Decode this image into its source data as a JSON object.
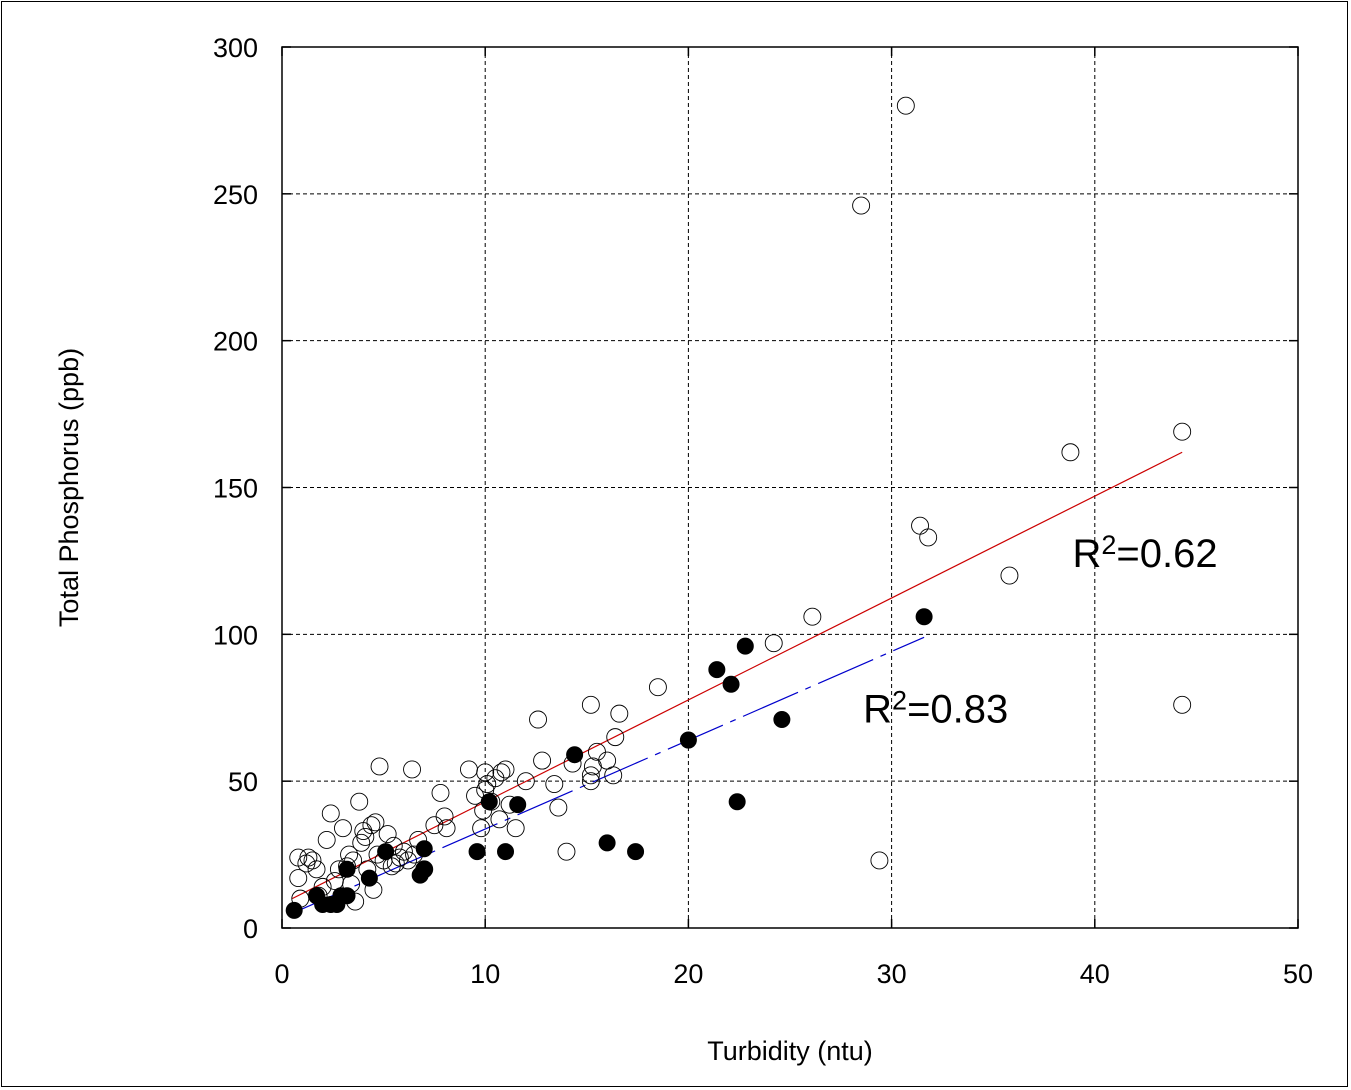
{
  "chart_data": {
    "type": "scatter",
    "title": "",
    "xlabel": "Turbidity (ntu)",
    "ylabel": "Total Phosphorus (ppb)",
    "xlim": [
      0,
      50
    ],
    "ylim": [
      0,
      300
    ],
    "x_ticks": [
      0,
      10,
      20,
      30,
      40,
      50
    ],
    "y_ticks": [
      0,
      50,
      100,
      150,
      200,
      250,
      300
    ],
    "grid": true,
    "series": [
      {
        "marker": "open-circle",
        "color": "#000000",
        "points": [
          [
            0.8,
            24
          ],
          [
            0.8,
            17
          ],
          [
            0.9,
            10
          ],
          [
            1.2,
            22
          ],
          [
            1.3,
            24
          ],
          [
            1.5,
            23
          ],
          [
            1.7,
            20
          ],
          [
            1.8,
            11
          ],
          [
            2.0,
            14
          ],
          [
            2.2,
            30
          ],
          [
            2.4,
            39
          ],
          [
            2.6,
            16
          ],
          [
            2.8,
            20
          ],
          [
            3.0,
            34
          ],
          [
            3.2,
            21
          ],
          [
            3.3,
            25
          ],
          [
            3.4,
            15
          ],
          [
            3.5,
            23
          ],
          [
            3.6,
            9
          ],
          [
            3.8,
            43
          ],
          [
            3.9,
            29
          ],
          [
            4.0,
            33
          ],
          [
            4.1,
            31
          ],
          [
            4.2,
            20
          ],
          [
            4.4,
            35
          ],
          [
            4.5,
            13
          ],
          [
            4.6,
            36
          ],
          [
            4.7,
            25
          ],
          [
            4.8,
            55
          ],
          [
            5.0,
            23
          ],
          [
            5.2,
            32
          ],
          [
            5.4,
            21
          ],
          [
            5.5,
            28
          ],
          [
            5.6,
            22
          ],
          [
            5.8,
            24
          ],
          [
            6.0,
            26
          ],
          [
            6.2,
            23
          ],
          [
            6.4,
            54
          ],
          [
            6.5,
            25
          ],
          [
            6.7,
            30
          ],
          [
            7.0,
            20
          ],
          [
            7.5,
            35
          ],
          [
            7.8,
            46
          ],
          [
            8.0,
            38
          ],
          [
            8.1,
            34
          ],
          [
            9.2,
            54
          ],
          [
            9.5,
            45
          ],
          [
            9.8,
            34
          ],
          [
            9.9,
            40
          ],
          [
            10.0,
            53
          ],
          [
            10.0,
            47
          ],
          [
            10.1,
            49
          ],
          [
            10.3,
            43
          ],
          [
            10.5,
            51
          ],
          [
            10.7,
            37
          ],
          [
            10.8,
            53
          ],
          [
            11.0,
            54
          ],
          [
            11.2,
            42
          ],
          [
            11.5,
            34
          ],
          [
            12.0,
            50
          ],
          [
            12.6,
            71
          ],
          [
            12.8,
            57
          ],
          [
            13.4,
            49
          ],
          [
            13.6,
            41
          ],
          [
            14.0,
            26
          ],
          [
            14.3,
            56
          ],
          [
            15.2,
            50
          ],
          [
            15.2,
            52
          ],
          [
            15.2,
            76
          ],
          [
            15.3,
            55
          ],
          [
            15.5,
            60
          ],
          [
            16.0,
            57
          ],
          [
            16.3,
            52
          ],
          [
            16.4,
            65
          ],
          [
            16.6,
            73
          ],
          [
            18.5,
            82
          ],
          [
            24.2,
            97
          ],
          [
            26.1,
            106
          ],
          [
            28.5,
            246
          ],
          [
            29.4,
            23
          ],
          [
            30.7,
            280
          ],
          [
            31.4,
            137
          ],
          [
            31.8,
            133
          ],
          [
            35.8,
            120
          ],
          [
            38.8,
            162
          ],
          [
            44.3,
            169
          ],
          [
            44.3,
            76
          ]
        ]
      },
      {
        "marker": "filled-circle",
        "color": "#000000",
        "points": [
          [
            0.6,
            6
          ],
          [
            1.7,
            11
          ],
          [
            2.0,
            8
          ],
          [
            2.4,
            8
          ],
          [
            2.7,
            8
          ],
          [
            2.9,
            11
          ],
          [
            3.2,
            11
          ],
          [
            3.2,
            20
          ],
          [
            4.3,
            17
          ],
          [
            5.1,
            26
          ],
          [
            6.8,
            18
          ],
          [
            7.0,
            20
          ],
          [
            7.0,
            27
          ],
          [
            9.6,
            26
          ],
          [
            10.2,
            43
          ],
          [
            11.0,
            26
          ],
          [
            11.6,
            42
          ],
          [
            14.4,
            59
          ],
          [
            16.0,
            29
          ],
          [
            17.4,
            26
          ],
          [
            20.0,
            64
          ],
          [
            21.4,
            88
          ],
          [
            22.1,
            83
          ],
          [
            22.4,
            43
          ],
          [
            22.8,
            96
          ],
          [
            24.6,
            71
          ],
          [
            31.6,
            106
          ]
        ]
      }
    ],
    "fit_lines": [
      {
        "style": "solid",
        "color": "#cc0000",
        "x": [
          0.5,
          44.3
        ],
        "y": [
          10,
          162
        ]
      },
      {
        "style": "dashed",
        "color": "#0000cc",
        "x": [
          0.5,
          31.6
        ],
        "y": [
          5,
          99
        ]
      }
    ],
    "annotations": [
      {
        "label_main": "R",
        "label_sup": "2",
        "label_rest": "=0.62",
        "x": 38.9,
        "y": 123
      },
      {
        "label_main": "R",
        "label_sup": "2",
        "label_rest": "=0.83",
        "x": 28.6,
        "y": 70
      }
    ]
  }
}
